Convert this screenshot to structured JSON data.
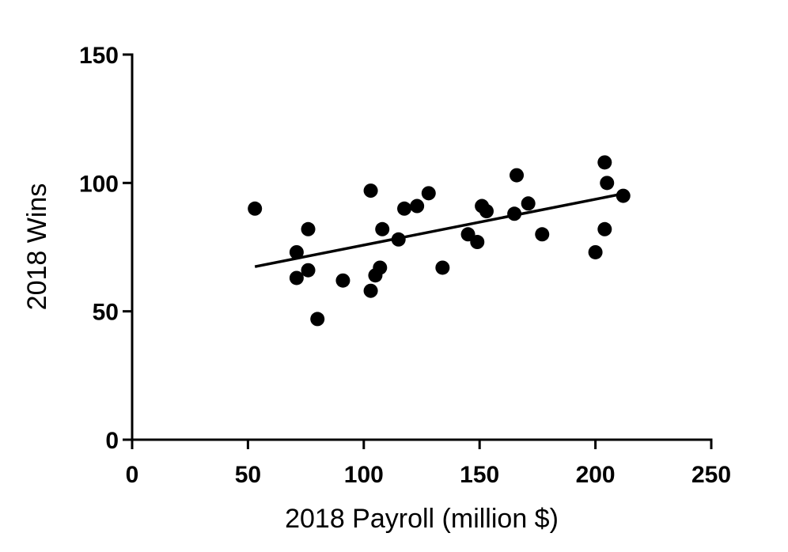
{
  "chart_data": {
    "type": "scatter",
    "x_label": "2018 Payroll (million $)",
    "y_label": "2018 Wins",
    "x": [
      53,
      71,
      71,
      76,
      76,
      80,
      91,
      103,
      103,
      105,
      107,
      108,
      115,
      117.5,
      123,
      128,
      134,
      145,
      149,
      151,
      153,
      165,
      166,
      171,
      177,
      200,
      204,
      204,
      205,
      212
    ],
    "y": [
      90,
      73,
      63,
      82,
      66,
      47,
      62,
      97,
      58,
      64,
      67,
      82,
      78,
      90,
      91,
      96,
      67,
      80,
      77,
      91,
      89,
      88,
      103,
      92,
      80,
      73,
      108,
      82,
      100,
      95
    ],
    "fit": {
      "x": [
        53,
        212
      ],
      "y": [
        67.4,
        95.8
      ]
    },
    "color": "#000000",
    "xlim": [
      0,
      250
    ],
    "ylim": [
      0,
      150
    ],
    "xticks": [
      0,
      50,
      100,
      150,
      200,
      250
    ],
    "yticks": [
      0,
      50,
      100,
      150
    ]
  }
}
